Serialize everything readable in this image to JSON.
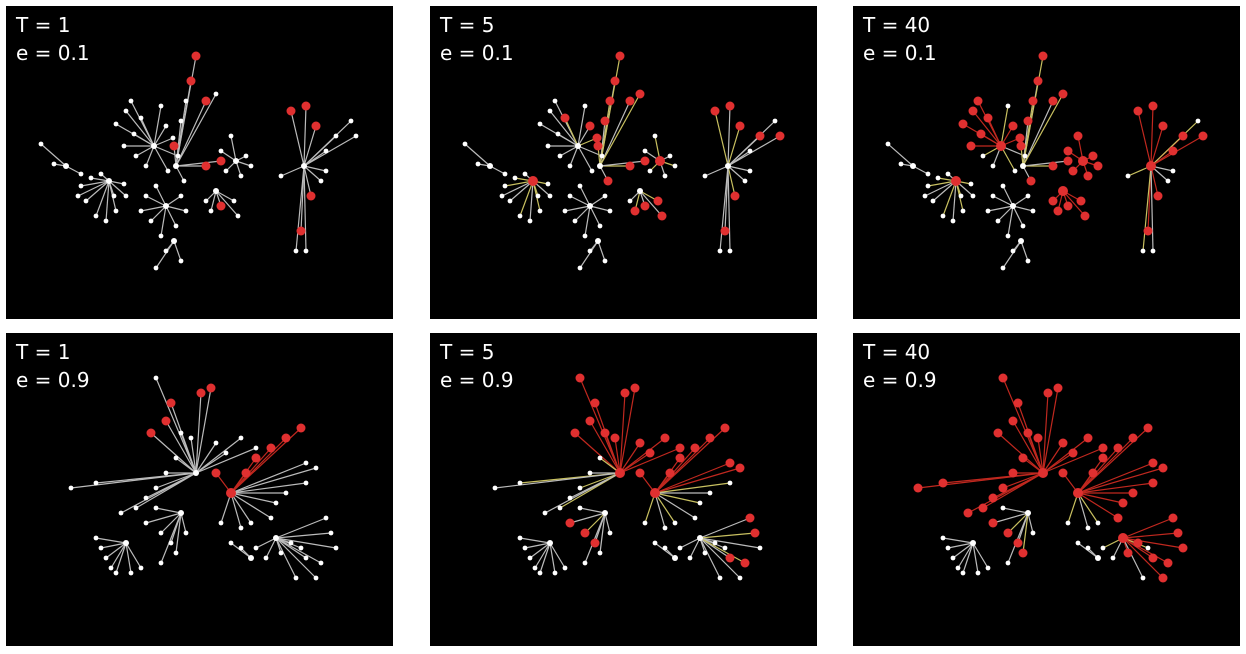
{
  "colors": {
    "background": "#000000",
    "node_default": "#ffffff",
    "node_infected": "#e03030",
    "edge_default": "#bbbbbb",
    "edge_infected": "#c0281f",
    "edge_transmit": "#c8c060"
  },
  "panels": [
    {
      "t_label": "T = 1",
      "e_label": "e = 0.1"
    },
    {
      "t_label": "T = 5",
      "e_label": "e = 0.1"
    },
    {
      "t_label": "T = 40",
      "e_label": "e = 0.1"
    },
    {
      "t_label": "T = 1",
      "e_label": "e = 0.9"
    },
    {
      "t_label": "T = 5",
      "e_label": "e = 0.9"
    },
    {
      "t_label": "T = 40",
      "e_label": "e = 0.9"
    }
  ]
}
